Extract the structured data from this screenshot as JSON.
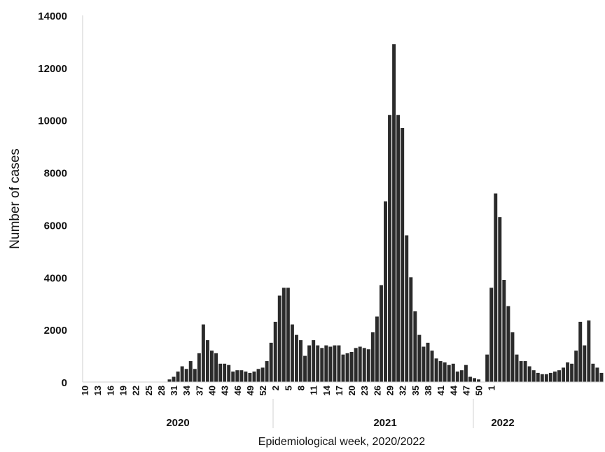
{
  "chart_data": {
    "type": "bar",
    "ylabel": "Number of cases",
    "xlabel": "Epidemiological week, 2020/2022",
    "ylim": [
      0,
      14000
    ],
    "yticks": [
      "0",
      "2000",
      "4000",
      "6000",
      "8000",
      "10000",
      "12000",
      "14000"
    ],
    "xticks": [
      "10",
      "13",
      "16",
      "19",
      "22",
      "25",
      "28",
      "31",
      "34",
      "37",
      "40",
      "43",
      "46",
      "49",
      "52",
      "2",
      "5",
      "8",
      "11",
      "14",
      "17",
      "20",
      "23",
      "26",
      "29",
      "32",
      "35",
      "38",
      "41",
      "44",
      "47",
      "50",
      "1"
    ],
    "years": [
      "2020",
      "2021",
      "2022"
    ],
    "grid": false,
    "bar_color": "#2b2b2b",
    "values": [
      0,
      0,
      0,
      0,
      0,
      0,
      0,
      0,
      0,
      0,
      0,
      0,
      0,
      0,
      0,
      0,
      0,
      0,
      0,
      0,
      100,
      200,
      400,
      600,
      500,
      800,
      500,
      1100,
      2200,
      1600,
      1200,
      1100,
      700,
      700,
      650,
      400,
      450,
      450,
      400,
      350,
      400,
      500,
      550,
      800,
      1500,
      2300,
      3300,
      3600,
      3600,
      2200,
      1800,
      1600,
      1000,
      1400,
      1600,
      1400,
      1300,
      1400,
      1350,
      1400,
      1400,
      1050,
      1100,
      1150,
      1300,
      1350,
      1300,
      1250,
      1900,
      2500,
      3700,
      6900,
      10200,
      12900,
      10200,
      9700,
      5600,
      4000,
      2700,
      1800,
      1350,
      1500,
      1200,
      900,
      800,
      750,
      650,
      700,
      400,
      450,
      650,
      200,
      150,
      100,
      0,
      1050,
      3600,
      7200,
      6300,
      3900,
      2900,
      1900,
      1050,
      800,
      800,
      600,
      450,
      350,
      300,
      300,
      350,
      400,
      450,
      550,
      750,
      700,
      1200,
      2300,
      1400,
      2350,
      700,
      550,
      350
    ]
  }
}
